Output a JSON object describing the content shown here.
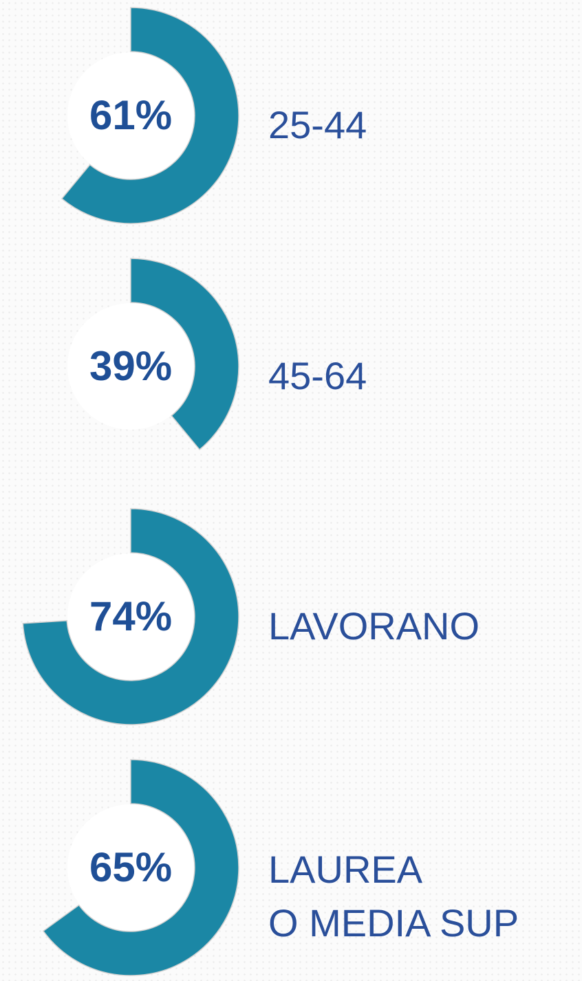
{
  "chart_data": [
    {
      "type": "donut",
      "categories": [
        "25-44"
      ],
      "values": [
        61
      ],
      "value_labels": [
        "61%"
      ],
      "color": "#1b87a5"
    },
    {
      "type": "donut",
      "categories": [
        "45-64"
      ],
      "values": [
        39
      ],
      "value_labels": [
        "39%"
      ],
      "color": "#1b87a5"
    },
    {
      "type": "donut",
      "categories": [
        "LAVORANO"
      ],
      "values": [
        74
      ],
      "value_labels": [
        "74%"
      ],
      "color": "#1b87a5"
    },
    {
      "type": "donut",
      "categories": [
        "LAUREA\nO MEDIA SUP"
      ],
      "values": [
        65
      ],
      "value_labels": [
        "65%"
      ],
      "color": "#1b87a5"
    }
  ]
}
